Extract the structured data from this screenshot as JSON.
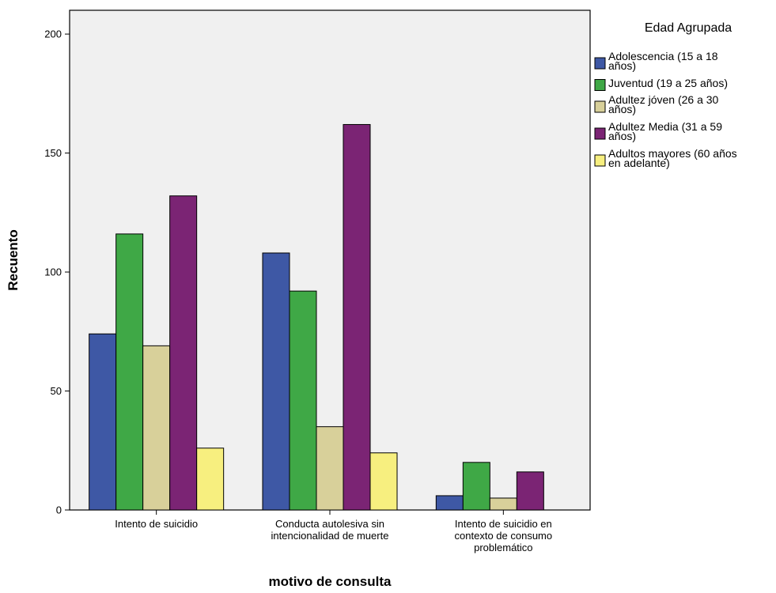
{
  "chart_data": {
    "type": "bar",
    "title": "",
    "xlabel": "motivo de consulta",
    "ylabel": "Recuento",
    "ylim": [
      0,
      210
    ],
    "yticks": [
      0,
      50,
      100,
      150,
      200
    ],
    "grid": false,
    "legend_title": "Edad Agrupada",
    "legend_position": "right",
    "categories": [
      "Intento de suicidio",
      "Conducta autolesiva sin intencionalidad de muerte",
      "Intento de suicidio en contexto de consumo problemático"
    ],
    "category_lines": [
      [
        "Intento de suicidio"
      ],
      [
        "Conducta autolesiva sin",
        "intencionalidad de muerte"
      ],
      [
        "Intento de suicidio en",
        "contexto de consumo",
        "problemático"
      ]
    ],
    "series": [
      {
        "name": "Adolescencia (15 a 18 años)",
        "legend_lines": [
          "Adolescencia (15 a 18",
          "años)"
        ],
        "color": "#3e58a5",
        "values": [
          74,
          108,
          6
        ]
      },
      {
        "name": "Juventud (19 a 25 años)",
        "legend_lines": [
          "Juventud (19 a 25 años)"
        ],
        "color": "#3fa846",
        "values": [
          116,
          92,
          20
        ]
      },
      {
        "name": "Adultez jóven (26 a 30 años)",
        "legend_lines": [
          "Adultez jóven (26 a 30",
          "años)"
        ],
        "color": "#d8d09a",
        "values": [
          69,
          35,
          5
        ]
      },
      {
        "name": "Adultez Media (31 a 59 años)",
        "legend_lines": [
          "Adultez Media (31 a 59",
          "años)"
        ],
        "color": "#7b2474",
        "values": [
          132,
          162,
          16
        ]
      },
      {
        "name": "Adultos mayores (60 años en adelante)",
        "legend_lines": [
          "Adultos mayores (60 años",
          "en adelante)"
        ],
        "color": "#f7ef7f",
        "values": [
          26,
          24,
          0
        ]
      }
    ],
    "plot_background": "#f0f0f0"
  }
}
